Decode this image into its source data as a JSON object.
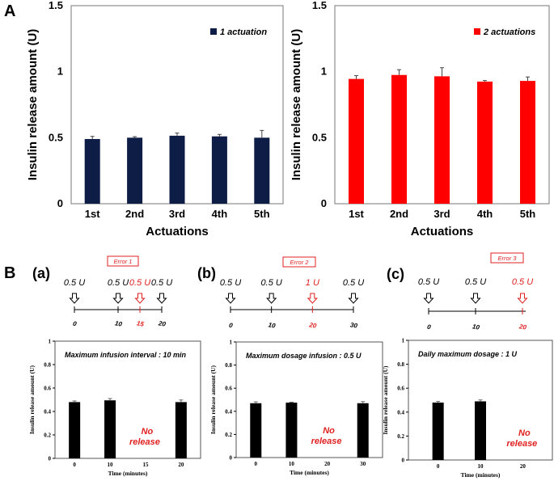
{
  "section_a_label": "A",
  "section_b_label": "B",
  "panel_a_xlabel": "Actuations",
  "panel_a_ylabel": "Insulin release amount (U)",
  "colors": {
    "navy": "#0e1d45",
    "red": "#ff0000",
    "black": "#000000",
    "alert_red": "#e02020"
  },
  "panels_b": [
    {
      "label": "(a)",
      "timeline": {
        "ticks": [
          0,
          10,
          15,
          20
        ],
        "tick_labels": [
          "0",
          "10",
          "15",
          "20"
        ],
        "red_index": 2,
        "doses": [
          "0.5 U",
          "0.5 U",
          "0.5 U",
          "0.5 U"
        ],
        "error_label": "Error 1"
      }
    },
    {
      "label": "(b)",
      "timeline": {
        "ticks": [
          0,
          10,
          20,
          30
        ],
        "tick_labels": [
          "0",
          "10",
          "20",
          "30"
        ],
        "red_index": 2,
        "doses": [
          "0.5 U",
          "0.5 U",
          "1 U",
          "0.5 U"
        ],
        "error_label": "Error 2"
      }
    },
    {
      "label": "(c)",
      "timeline": {
        "ticks": [
          0,
          10,
          20
        ],
        "tick_labels": [
          "0",
          "10",
          "20"
        ],
        "red_index": 2,
        "doses": [
          "0.5 U",
          "0.5 U",
          "0.5 U"
        ],
        "error_label": "Error 3"
      }
    }
  ],
  "chart_data": [
    {
      "type": "bar",
      "title": "",
      "xlabel": "Actuations",
      "ylabel": "Insulin release amount (U)",
      "categories": [
        "1st",
        "2nd",
        "3rd",
        "4th",
        "5th"
      ],
      "series": [
        {
          "name": "1 actuation",
          "values": [
            0.49,
            0.5,
            0.515,
            0.51,
            0.5
          ],
          "errors": [
            0.02,
            0.008,
            0.02,
            0.015,
            0.055
          ]
        }
      ],
      "ylim": [
        0,
        1.5
      ],
      "yticks": [
        0,
        0.5,
        1,
        1.5
      ],
      "ytick_labels": [
        "0",
        "0.5",
        "1",
        "1.5"
      ],
      "legend": "top-right",
      "color": "#0e1d45"
    },
    {
      "type": "bar",
      "title": "",
      "xlabel": "Actuations",
      "ylabel": "Insulin release amount (U)",
      "categories": [
        "1st",
        "2nd",
        "3rd",
        "4th",
        "5th"
      ],
      "series": [
        {
          "name": "2 actuations",
          "values": [
            0.945,
            0.975,
            0.965,
            0.925,
            0.93
          ],
          "errors": [
            0.025,
            0.04,
            0.065,
            0.008,
            0.03
          ]
        }
      ],
      "ylim": [
        0,
        1.5
      ],
      "yticks": [
        0,
        0.5,
        1,
        1.5
      ],
      "ytick_labels": [
        "0",
        "0.5",
        "1",
        "1.5"
      ],
      "legend": "top-right",
      "color": "#ff0000"
    },
    {
      "type": "bar",
      "title": "Maximum infusion interval : 10 min",
      "xlabel": "Time (minutes)",
      "ylabel": "Insulin release amount (U)",
      "categories": [
        "0",
        "10",
        "15",
        "20"
      ],
      "series": [
        {
          "name": "release",
          "values": [
            0.48,
            0.495,
            null,
            0.48
          ],
          "errors": [
            0.01,
            0.015,
            0,
            0.018
          ]
        }
      ],
      "ylim": [
        0,
        1
      ],
      "yticks": [
        0,
        0.2,
        0.4,
        0.6,
        0.8,
        1
      ],
      "ytick_labels": [
        "0",
        "0.2",
        "0.4",
        "0.6",
        "0.8",
        "1"
      ],
      "annotation": "No release",
      "annotation_index": 2,
      "color": "#000000"
    },
    {
      "type": "bar",
      "title": "Maximum dosage infusion : 0.5 U",
      "xlabel": "Time (minutes)",
      "ylabel": "Insulin release amount (U)",
      "categories": [
        "0",
        "10",
        "20",
        "30"
      ],
      "series": [
        {
          "name": "release",
          "values": [
            0.47,
            0.475,
            null,
            0.47
          ],
          "errors": [
            0.012,
            0.004,
            0,
            0.014
          ]
        }
      ],
      "ylim": [
        0,
        1
      ],
      "yticks": [
        0,
        0.2,
        0.4,
        0.6,
        0.8,
        1
      ],
      "ytick_labels": [
        "0",
        "0.2",
        "0.4",
        "0.6",
        "0.8",
        "1"
      ],
      "annotation": "No release",
      "annotation_index": 2,
      "color": "#000000"
    },
    {
      "type": "bar",
      "title": "Daily maximum dosage : 1 U",
      "xlabel": "Time (minutes)",
      "ylabel": "Insulin release amount (U)",
      "categories": [
        "0",
        "10",
        "20"
      ],
      "series": [
        {
          "name": "release",
          "values": [
            0.48,
            0.49,
            null
          ],
          "errors": [
            0.01,
            0.012,
            0
          ]
        }
      ],
      "ylim": [
        0,
        1
      ],
      "yticks": [
        0,
        0.2,
        0.4,
        0.6,
        0.8,
        1
      ],
      "ytick_labels": [
        "0",
        "0.2",
        "0.4",
        "0.6",
        "0.8",
        "1"
      ],
      "annotation": "No release",
      "annotation_index": 2,
      "color": "#000000"
    }
  ]
}
